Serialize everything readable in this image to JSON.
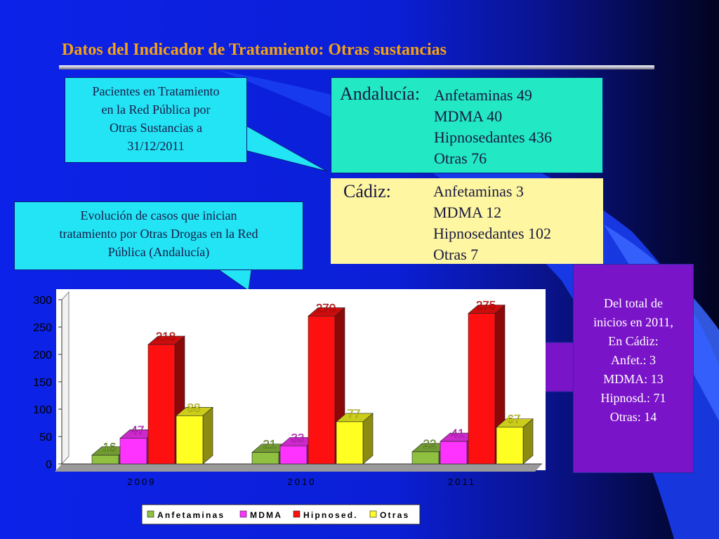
{
  "title": "Datos del Indicador de Tratamiento: Otras sustancias",
  "callout_patients": {
    "lines": [
      "Pacientes en Tratamiento",
      "en la Red Pública por",
      "Otras Sustancias a",
      "31/12/2011"
    ]
  },
  "callout_evolution": {
    "lines": [
      "Evolución de casos que inician",
      "tratamiento por Otras Drogas en la Red",
      "Pública (Andalucía)"
    ]
  },
  "andalucia": {
    "region": "Andalucía:",
    "lines": [
      "Anfetaminas 49",
      "MDMA 40",
      "Hipnosedantes 436",
      "Otras 76"
    ]
  },
  "cadiz": {
    "region": "Cádiz:",
    "lines": [
      "Anfetaminas 3",
      "MDMA 12",
      "Hipnosedantes 102",
      "Otras 7"
    ]
  },
  "purple_callout": {
    "lines": [
      "Del total de",
      "inicios en 2011,",
      "En Cádiz:",
      "Anfet.: 3",
      "MDMA: 13",
      "Hipnosd.: 71",
      "Otras: 14"
    ]
  },
  "chart_data": {
    "type": "bar",
    "categories": [
      "2009",
      "2010",
      "2011"
    ],
    "series": [
      {
        "name": "Anfetaminas",
        "values": [
          16,
          21,
          22
        ],
        "color": "#8fc040"
      },
      {
        "name": "MDMA",
        "values": [
          47,
          33,
          41
        ],
        "color": "#ff33ff"
      },
      {
        "name": "Hipnosed.",
        "values": [
          218,
          270,
          275
        ],
        "color": "#ff1010"
      },
      {
        "name": "Otras",
        "values": [
          88,
          77,
          67
        ],
        "color": "#ffff22"
      }
    ],
    "ylim": [
      0,
      300
    ],
    "yticks": [
      0,
      50,
      100,
      150,
      200,
      250,
      300
    ],
    "legend_position": "bottom",
    "style": "3d-clustered",
    "grid": false
  }
}
